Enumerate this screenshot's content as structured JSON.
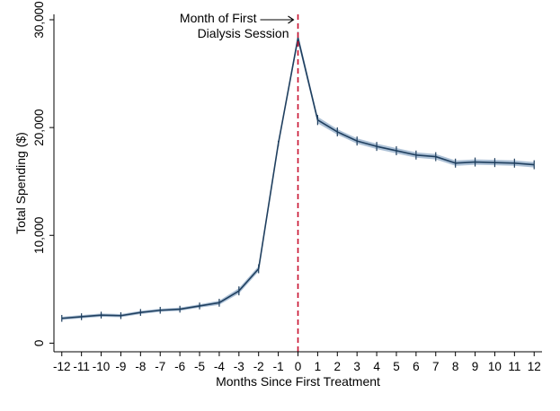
{
  "chart_data": {
    "type": "line",
    "xlabel": "Months Since First Treatment",
    "ylabel": "Total Spending ($)",
    "x": [
      -12,
      -11,
      -10,
      -9,
      -8,
      -7,
      -6,
      -5,
      -4,
      -3,
      -2,
      -1,
      0,
      1,
      2,
      3,
      4,
      5,
      6,
      7,
      8,
      9,
      10,
      11,
      12
    ],
    "x_tick_labels": [
      "-12",
      "-11",
      "-10",
      "-9",
      "-8",
      "-7",
      "-6",
      "-5",
      "-4",
      "-3",
      "-2",
      "-1",
      "0",
      "1",
      "2",
      "3",
      "4",
      "5",
      "6",
      "7",
      "8",
      "9",
      "10",
      "11",
      "12"
    ],
    "y_ticks": [
      0,
      10000,
      20000,
      30000
    ],
    "y_tick_labels": [
      "0",
      "10,000",
      "20,000",
      "30,000"
    ],
    "xlim": [
      -12.4,
      12.4
    ],
    "ylim": [
      -800,
      30500
    ],
    "grid": false,
    "series": [
      {
        "values": [
          2300,
          2450,
          2600,
          2550,
          2850,
          3050,
          3150,
          3450,
          3750,
          4850,
          6900,
          18500,
          28300,
          20700,
          19600,
          18750,
          18250,
          17850,
          17450,
          17300,
          16700,
          16800,
          16750,
          16700,
          16550
        ],
        "ci_lower": [
          2150,
          2300,
          2450,
          2400,
          2700,
          2900,
          3000,
          3300,
          3550,
          4600,
          6650,
          18400,
          27900,
          20400,
          19350,
          18500,
          18000,
          17600,
          17200,
          17050,
          16450,
          16550,
          16500,
          16450,
          16300
        ],
        "ci_upper": [
          2450,
          2600,
          2750,
          2700,
          3000,
          3200,
          3300,
          3600,
          3950,
          5100,
          7150,
          18600,
          28700,
          21000,
          19850,
          19000,
          18500,
          18100,
          17700,
          17550,
          16950,
          17050,
          17000,
          16950,
          16800
        ],
        "color": "#1f3f5f",
        "ci_color": "#9fb6cf"
      }
    ],
    "reference_line": {
      "x": 0,
      "style": "dashed",
      "color": "#c8102e"
    },
    "annotation": {
      "lines": [
        "Month of First",
        "Dialysis Session"
      ]
    }
  }
}
